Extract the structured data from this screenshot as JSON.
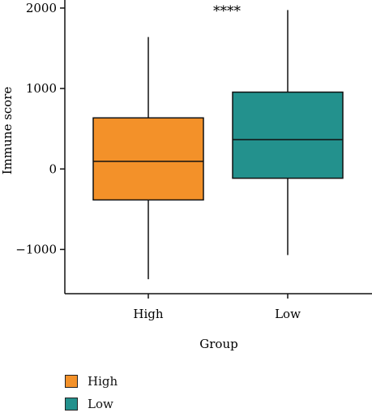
{
  "chart_data": {
    "type": "box",
    "title": "",
    "xlabel": "Group",
    "ylabel": "Immune score",
    "ylim": [
      -1550,
      2100
    ],
    "yticks": [
      -1000,
      0,
      1000,
      2000
    ],
    "ytick_labels": [
      "−1000",
      "0",
      "1000",
      "2000"
    ],
    "categories": [
      "High",
      "Low"
    ],
    "series": [
      {
        "name": "High",
        "color": "#F39129",
        "whisker_low": -1370,
        "q1": -385,
        "median": 95,
        "q3": 635,
        "whisker_high": 1640
      },
      {
        "name": "Low",
        "color": "#23918D",
        "whisker_low": -1070,
        "q1": -115,
        "median": 365,
        "q3": 955,
        "whisker_high": 1975
      }
    ],
    "annotation": "****",
    "legend": [
      "High",
      "Low"
    ],
    "legend_position": "bottom-left",
    "grid": false
  }
}
